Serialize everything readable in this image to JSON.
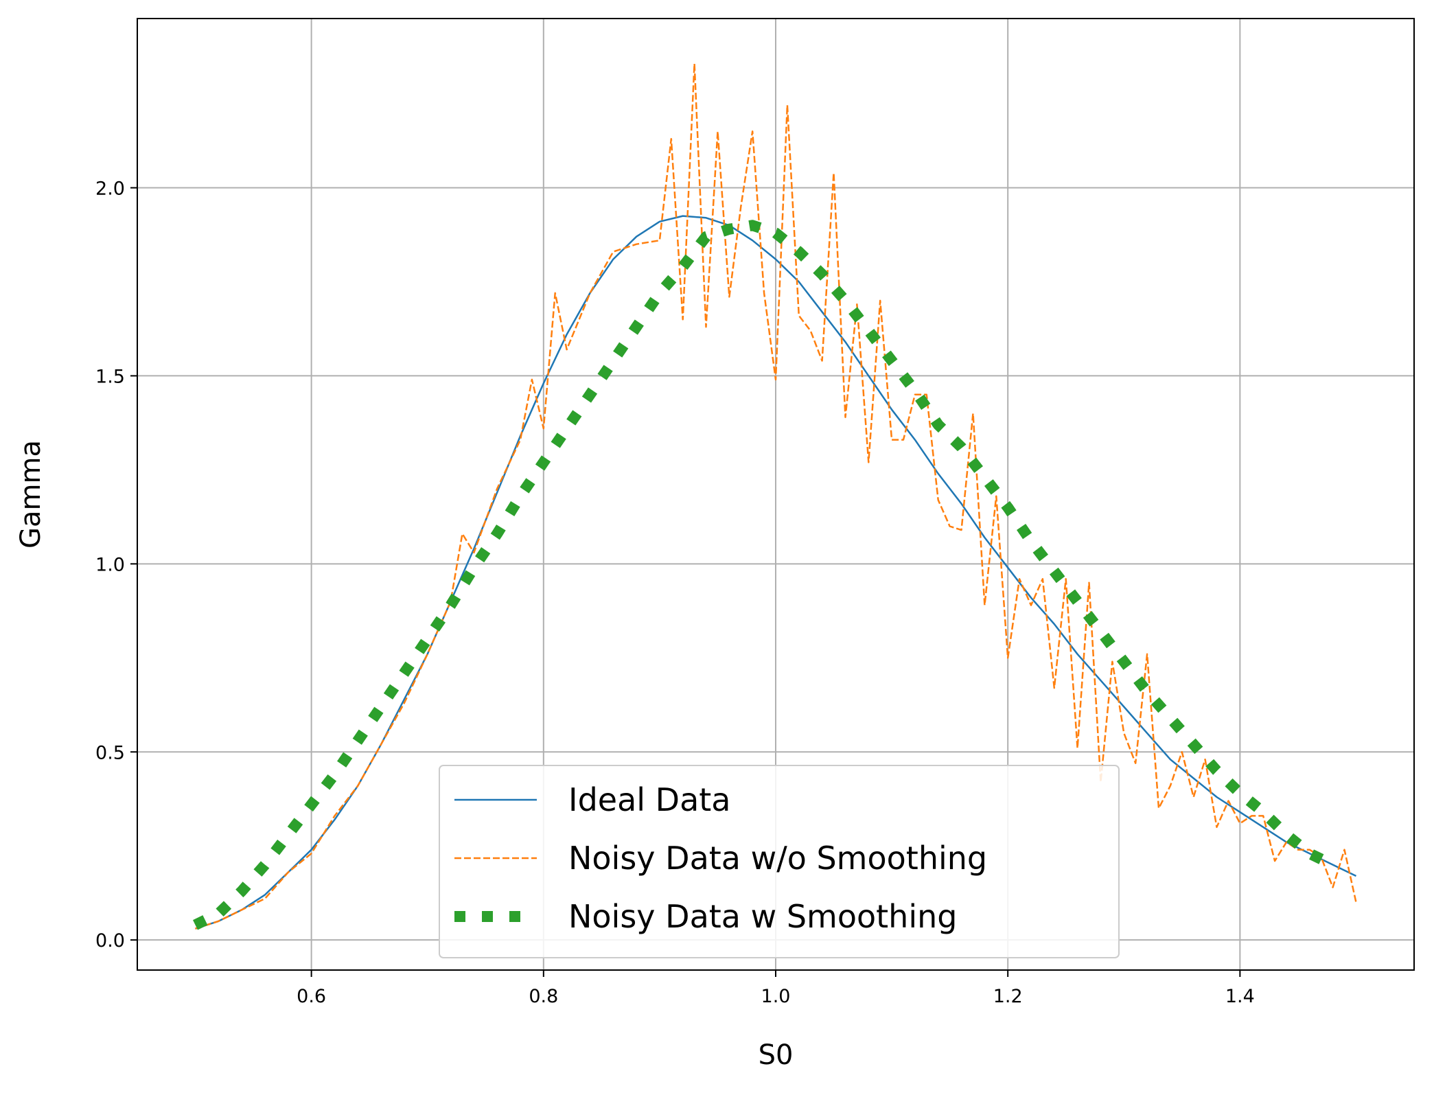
{
  "chart_data": {
    "type": "line",
    "title": "",
    "xlabel": "S0",
    "ylabel": "Gamma",
    "xlim": [
      0.45,
      1.55
    ],
    "ylim": [
      -0.08,
      2.45
    ],
    "xticks": [
      0.6,
      0.8,
      1.0,
      1.2,
      1.4
    ],
    "xtick_labels": [
      "0.6",
      "0.8",
      "1.0",
      "1.2",
      "1.4"
    ],
    "yticks": [
      0.0,
      0.5,
      1.0,
      1.5,
      2.0
    ],
    "ytick_labels": [
      "0.0",
      "0.5",
      "1.0",
      "1.5",
      "2.0"
    ],
    "grid": true,
    "legend_position": "bottom-center",
    "series": [
      {
        "name": "Ideal Data",
        "style": "solid",
        "color": "#1f77b4",
        "x": [
          0.5,
          0.52,
          0.54,
          0.56,
          0.58,
          0.6,
          0.62,
          0.64,
          0.66,
          0.68,
          0.7,
          0.72,
          0.74,
          0.76,
          0.78,
          0.8,
          0.82,
          0.84,
          0.86,
          0.88,
          0.9,
          0.92,
          0.94,
          0.96,
          0.98,
          1.0,
          1.02,
          1.04,
          1.06,
          1.08,
          1.1,
          1.12,
          1.14,
          1.16,
          1.18,
          1.2,
          1.22,
          1.24,
          1.26,
          1.28,
          1.3,
          1.32,
          1.34,
          1.36,
          1.38,
          1.4,
          1.42,
          1.44,
          1.46,
          1.48,
          1.5
        ],
        "y": [
          0.03,
          0.05,
          0.08,
          0.12,
          0.18,
          0.24,
          0.32,
          0.41,
          0.52,
          0.64,
          0.76,
          0.9,
          1.04,
          1.19,
          1.34,
          1.48,
          1.61,
          1.72,
          1.81,
          1.87,
          1.91,
          1.925,
          1.92,
          1.9,
          1.86,
          1.81,
          1.75,
          1.67,
          1.59,
          1.5,
          1.41,
          1.33,
          1.24,
          1.16,
          1.07,
          0.99,
          0.91,
          0.84,
          0.76,
          0.69,
          0.62,
          0.55,
          0.48,
          0.43,
          0.38,
          0.34,
          0.3,
          0.26,
          0.23,
          0.2,
          0.17
        ]
      },
      {
        "name": "Noisy Data w/o Smoothing",
        "style": "dashed",
        "color": "#ff7f0e",
        "x": [
          0.5,
          0.52,
          0.54,
          0.56,
          0.58,
          0.6,
          0.62,
          0.64,
          0.66,
          0.68,
          0.7,
          0.72,
          0.73,
          0.74,
          0.76,
          0.78,
          0.79,
          0.8,
          0.81,
          0.82,
          0.84,
          0.86,
          0.88,
          0.9,
          0.91,
          0.92,
          0.93,
          0.94,
          0.95,
          0.96,
          0.97,
          0.98,
          0.99,
          1.0,
          1.01,
          1.02,
          1.03,
          1.04,
          1.05,
          1.06,
          1.07,
          1.08,
          1.09,
          1.1,
          1.11,
          1.12,
          1.13,
          1.14,
          1.15,
          1.16,
          1.17,
          1.18,
          1.19,
          1.2,
          1.21,
          1.22,
          1.23,
          1.24,
          1.25,
          1.26,
          1.27,
          1.28,
          1.29,
          1.3,
          1.31,
          1.32,
          1.33,
          1.34,
          1.35,
          1.36,
          1.37,
          1.38,
          1.39,
          1.4,
          1.41,
          1.42,
          1.43,
          1.44,
          1.45,
          1.46,
          1.47,
          1.48,
          1.49,
          1.5
        ],
        "y": [
          0.03,
          0.05,
          0.08,
          0.11,
          0.18,
          0.23,
          0.33,
          0.41,
          0.52,
          0.63,
          0.76,
          0.9,
          1.08,
          1.03,
          1.2,
          1.33,
          1.49,
          1.36,
          1.72,
          1.57,
          1.72,
          1.83,
          1.85,
          1.86,
          2.13,
          1.65,
          2.33,
          1.63,
          2.15,
          1.71,
          1.95,
          2.15,
          1.72,
          1.49,
          2.22,
          1.66,
          1.62,
          1.54,
          2.04,
          1.39,
          1.69,
          1.27,
          1.7,
          1.33,
          1.33,
          1.45,
          1.45,
          1.17,
          1.1,
          1.09,
          1.4,
          0.89,
          1.18,
          0.75,
          0.96,
          0.89,
          0.96,
          0.67,
          0.96,
          0.51,
          0.95,
          0.42,
          0.74,
          0.55,
          0.47,
          0.76,
          0.35,
          0.41,
          0.5,
          0.38,
          0.48,
          0.3,
          0.37,
          0.31,
          0.33,
          0.33,
          0.21,
          0.26,
          0.24,
          0.24,
          0.22,
          0.14,
          0.24,
          0.1
        ]
      },
      {
        "name": "Noisy Data w Smoothing",
        "style": "dotted",
        "color": "#2ca02c",
        "x": [
          0.5,
          0.52,
          0.54,
          0.56,
          0.58,
          0.6,
          0.62,
          0.64,
          0.66,
          0.68,
          0.7,
          0.72,
          0.74,
          0.76,
          0.78,
          0.8,
          0.82,
          0.84,
          0.86,
          0.88,
          0.9,
          0.92,
          0.94,
          0.96,
          0.98,
          1.0,
          1.02,
          1.04,
          1.06,
          1.08,
          1.1,
          1.12,
          1.14,
          1.16,
          1.18,
          1.2,
          1.22,
          1.24,
          1.26,
          1.28,
          1.3,
          1.32,
          1.34,
          1.36,
          1.38,
          1.4,
          1.42,
          1.44,
          1.46,
          1.48
        ],
        "y": [
          0.04,
          0.07,
          0.13,
          0.2,
          0.28,
          0.36,
          0.44,
          0.53,
          0.62,
          0.71,
          0.8,
          0.89,
          0.99,
          1.08,
          1.18,
          1.27,
          1.36,
          1.45,
          1.54,
          1.63,
          1.72,
          1.79,
          1.87,
          1.89,
          1.9,
          1.88,
          1.83,
          1.77,
          1.7,
          1.62,
          1.54,
          1.46,
          1.37,
          1.31,
          1.23,
          1.15,
          1.06,
          0.98,
          0.9,
          0.82,
          0.74,
          0.66,
          0.59,
          0.52,
          0.45,
          0.39,
          0.34,
          0.28,
          0.23,
          0.2
        ]
      }
    ]
  }
}
